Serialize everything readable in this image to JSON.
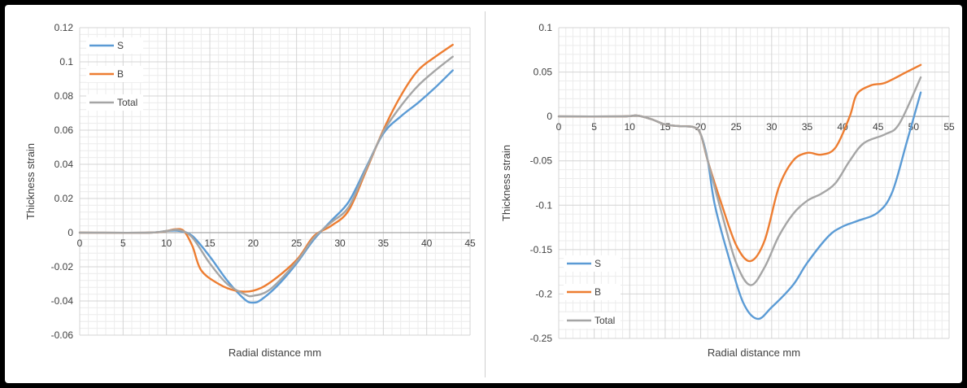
{
  "chart_data": [
    {
      "type": "line",
      "title": "",
      "xlabel": "Radial distance mm",
      "ylabel": "Thickness strain",
      "xlim": [
        0,
        45
      ],
      "ylim": [
        -0.06,
        0.12
      ],
      "xticks": [
        0,
        5,
        10,
        15,
        20,
        25,
        30,
        35,
        40,
        45
      ],
      "yticks": [
        -0.06,
        -0.04,
        -0.02,
        0,
        0.02,
        0.04,
        0.06,
        0.08,
        0.1,
        0.12
      ],
      "ytick_labels": [
        "-0.06",
        "-0.04",
        "-0.02",
        "0",
        "0.02",
        "0.04",
        "0.06",
        "0.08",
        "0.1",
        "0.12"
      ],
      "grid": true,
      "legend": "top-left",
      "series": [
        {
          "name": "S",
          "color": "#5b9bd5",
          "points": [
            [
              0,
              0
            ],
            [
              8,
              0
            ],
            [
              10,
              0.001
            ],
            [
              11.5,
              0.001
            ],
            [
              13,
              -0.002
            ],
            [
              15,
              -0.014
            ],
            [
              17,
              -0.028
            ],
            [
              19,
              -0.039
            ],
            [
              20,
              -0.041
            ],
            [
              21,
              -0.039
            ],
            [
              23,
              -0.03
            ],
            [
              25,
              -0.018
            ],
            [
              27,
              -0.004
            ],
            [
              29,
              0.007
            ],
            [
              31,
              0.018
            ],
            [
              33,
              0.038
            ],
            [
              35,
              0.058
            ],
            [
              37,
              0.068
            ],
            [
              39,
              0.076
            ],
            [
              41,
              0.085
            ],
            [
              43,
              0.095
            ]
          ]
        },
        {
          "name": "B",
          "color": "#ed7d31",
          "points": [
            [
              0,
              0
            ],
            [
              8,
              0
            ],
            [
              10,
              0.001
            ],
            [
              11,
              0.002
            ],
            [
              12,
              0.001
            ],
            [
              13,
              -0.008
            ],
            [
              14,
              -0.022
            ],
            [
              16,
              -0.03
            ],
            [
              18,
              -0.034
            ],
            [
              20,
              -0.034
            ],
            [
              22,
              -0.029
            ],
            [
              25,
              -0.016
            ],
            [
              27,
              -0.002
            ],
            [
              29,
              0.004
            ],
            [
              31,
              0.013
            ],
            [
              33,
              0.036
            ],
            [
              35,
              0.06
            ],
            [
              37,
              0.08
            ],
            [
              39,
              0.095
            ],
            [
              41,
              0.103
            ],
            [
              43,
              0.11
            ]
          ]
        },
        {
          "name": "Total",
          "color": "#a5a5a5",
          "points": [
            [
              0,
              0
            ],
            [
              8,
              0
            ],
            [
              10,
              0.001
            ],
            [
              11.5,
              0.0015
            ],
            [
              13,
              -0.003
            ],
            [
              15,
              -0.018
            ],
            [
              17,
              -0.03
            ],
            [
              19,
              -0.036
            ],
            [
              20,
              -0.037
            ],
            [
              22,
              -0.033
            ],
            [
              25,
              -0.017
            ],
            [
              27,
              -0.003
            ],
            [
              29,
              0.006
            ],
            [
              31,
              0.015
            ],
            [
              33,
              0.037
            ],
            [
              35,
              0.059
            ],
            [
              37,
              0.074
            ],
            [
              39,
              0.086
            ],
            [
              41,
              0.095
            ],
            [
              43,
              0.103
            ]
          ]
        }
      ]
    },
    {
      "type": "line",
      "title": "",
      "xlabel": "Radial distance mm",
      "ylabel": "Thickness strain",
      "xlim": [
        0,
        55
      ],
      "ylim": [
        -0.25,
        0.1
      ],
      "xticks": [
        0,
        5,
        10,
        15,
        20,
        25,
        30,
        35,
        40,
        45,
        50,
        55
      ],
      "yticks": [
        -0.25,
        -0.2,
        -0.15,
        -0.1,
        -0.05,
        0,
        0.05,
        0.1
      ],
      "ytick_labels": [
        "-0.25",
        "-0.2",
        "-0.15",
        "-0.1",
        "-0.05",
        "0",
        "0.05",
        "0.1"
      ],
      "grid": true,
      "legend": "bottom-left",
      "series": [
        {
          "name": "S",
          "color": "#5b9bd5",
          "points": [
            [
              0,
              0
            ],
            [
              9,
              0
            ],
            [
              11,
              0.001
            ],
            [
              13,
              -0.003
            ],
            [
              15,
              -0.009
            ],
            [
              17,
              -0.011
            ],
            [
              19,
              -0.012
            ],
            [
              20,
              -0.02
            ],
            [
              21,
              -0.05
            ],
            [
              22,
              -0.1
            ],
            [
              24,
              -0.16
            ],
            [
              26,
              -0.21
            ],
            [
              28,
              -0.228
            ],
            [
              30,
              -0.215
            ],
            [
              33,
              -0.19
            ],
            [
              35,
              -0.165
            ],
            [
              38,
              -0.135
            ],
            [
              40,
              -0.124
            ],
            [
              42,
              -0.118
            ],
            [
              45,
              -0.108
            ],
            [
              47,
              -0.085
            ],
            [
              49,
              -0.03
            ],
            [
              51,
              0.027
            ]
          ]
        },
        {
          "name": "B",
          "color": "#ed7d31",
          "points": [
            [
              0,
              0
            ],
            [
              9,
              0
            ],
            [
              11,
              0.001
            ],
            [
              13,
              -0.003
            ],
            [
              15,
              -0.009
            ],
            [
              17,
              -0.011
            ],
            [
              19,
              -0.012
            ],
            [
              20,
              -0.02
            ],
            [
              21,
              -0.05
            ],
            [
              23,
              -0.1
            ],
            [
              25,
              -0.145
            ],
            [
              27,
              -0.163
            ],
            [
              29,
              -0.14
            ],
            [
              31,
              -0.08
            ],
            [
              33,
              -0.05
            ],
            [
              35,
              -0.041
            ],
            [
              37,
              -0.043
            ],
            [
              39,
              -0.035
            ],
            [
              41,
              0.0
            ],
            [
              42,
              0.025
            ],
            [
              44,
              0.035
            ],
            [
              46,
              0.038
            ],
            [
              49,
              0.05
            ],
            [
              51,
              0.058
            ]
          ]
        },
        {
          "name": "Total",
          "color": "#a5a5a5",
          "points": [
            [
              0,
              0
            ],
            [
              9,
              0
            ],
            [
              11,
              0.001
            ],
            [
              13,
              -0.003
            ],
            [
              15,
              -0.009
            ],
            [
              17,
              -0.011
            ],
            [
              19,
              -0.012
            ],
            [
              20,
              -0.02
            ],
            [
              21,
              -0.05
            ],
            [
              23,
              -0.11
            ],
            [
              25,
              -0.165
            ],
            [
              27,
              -0.19
            ],
            [
              29,
              -0.17
            ],
            [
              31,
              -0.135
            ],
            [
              33,
              -0.11
            ],
            [
              35,
              -0.095
            ],
            [
              37,
              -0.087
            ],
            [
              39,
              -0.075
            ],
            [
              41,
              -0.05
            ],
            [
              43,
              -0.03
            ],
            [
              46,
              -0.02
            ],
            [
              48,
              -0.008
            ],
            [
              51,
              0.044
            ]
          ]
        }
      ]
    }
  ]
}
